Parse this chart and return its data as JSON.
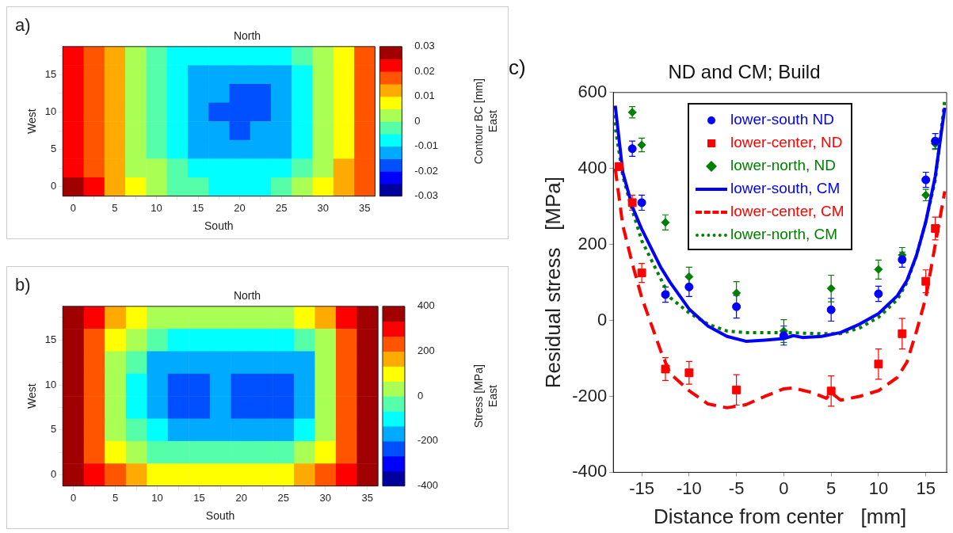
{
  "chart_data": [
    {
      "type": "heatmap",
      "title": "North",
      "xlabel": "South",
      "ylabel": "West",
      "clabel": "Contour BC [mm]",
      "y2label": "East",
      "annotations": [
        "a)"
      ],
      "categories": [
        "0",
        null,
        "5",
        null,
        "10",
        null,
        "15",
        null,
        "20",
        null,
        "25",
        null,
        "30",
        null,
        "35"
      ],
      "y_categories": [
        null,
        "15",
        null,
        "10",
        null,
        "5",
        null,
        "0"
      ],
      "clim": [
        -0.03,
        0.03
      ],
      "cticks": [
        -0.03,
        -0.02,
        -0.01,
        0,
        0.01,
        0.02,
        0.03
      ],
      "cells": [
        [
          0.022,
          0.017,
          0.011,
          0.004,
          -0.002,
          -0.006,
          -0.008,
          -0.009,
          -0.01,
          -0.009,
          -0.008,
          -0.004,
          0.003,
          0.009,
          0.016
        ],
        [
          0.022,
          0.017,
          0.011,
          0.004,
          -0.002,
          -0.007,
          -0.011,
          -0.012,
          -0.013,
          -0.012,
          -0.011,
          -0.006,
          0.002,
          0.009,
          0.016
        ],
        [
          0.022,
          0.017,
          0.01,
          0.003,
          -0.003,
          -0.008,
          -0.012,
          -0.014,
          -0.016,
          -0.016,
          -0.013,
          -0.007,
          0.001,
          0.008,
          0.015
        ],
        [
          0.022,
          0.017,
          0.01,
          0.002,
          -0.004,
          -0.009,
          -0.012,
          -0.017,
          -0.018,
          -0.017,
          -0.013,
          -0.008,
          0.001,
          0.008,
          0.015
        ],
        [
          0.022,
          0.017,
          0.01,
          0.002,
          -0.004,
          -0.009,
          -0.012,
          -0.014,
          -0.016,
          -0.014,
          -0.012,
          -0.008,
          0.001,
          0.008,
          0.015
        ],
        [
          0.022,
          0.017,
          0.011,
          0.003,
          -0.003,
          -0.007,
          -0.011,
          -0.012,
          -0.012,
          -0.012,
          -0.011,
          -0.006,
          0.002,
          0.009,
          0.016
        ],
        [
          0.024,
          0.018,
          0.012,
          0.005,
          0.001,
          -0.004,
          -0.007,
          -0.008,
          -0.009,
          -0.008,
          -0.006,
          -0.002,
          0.005,
          0.011,
          0.017
        ],
        [
          0.026,
          0.02,
          0.014,
          0.007,
          0.003,
          -0.002,
          -0.005,
          -0.006,
          -0.006,
          -0.006,
          -0.004,
          0.001,
          0.007,
          0.012,
          0.018
        ]
      ]
    },
    {
      "type": "heatmap",
      "title": "North",
      "xlabel": "South",
      "ylabel": "West",
      "clabel": "Stress [MPa]",
      "y2label": "East",
      "annotations": [
        "b)"
      ],
      "categories": [
        "0",
        null,
        "5",
        null,
        "10",
        null,
        "15",
        null,
        "20",
        null,
        "25",
        null,
        "30",
        null,
        "35"
      ],
      "y_categories": [
        null,
        "15",
        null,
        "10",
        null,
        "5",
        null,
        "0"
      ],
      "clim": [
        -400,
        400
      ],
      "cticks": [
        -400,
        -200,
        0,
        200,
        400
      ],
      "cells": [
        [
          380,
          300,
          150,
          80,
          40,
          20,
          10,
          10,
          10,
          20,
          40,
          80,
          150,
          300,
          380
        ],
        [
          380,
          250,
          100,
          20,
          -40,
          -90,
          -110,
          -110,
          -110,
          -110,
          -100,
          -50,
          60,
          250,
          380
        ],
        [
          380,
          230,
          60,
          -60,
          -150,
          -170,
          -190,
          -190,
          -170,
          -190,
          -180,
          -150,
          20,
          220,
          380
        ],
        [
          380,
          220,
          40,
          -80,
          -170,
          -230,
          -220,
          -160,
          -230,
          -240,
          -230,
          -160,
          10,
          210,
          380
        ],
        [
          380,
          220,
          40,
          -80,
          -160,
          -220,
          -210,
          -160,
          -220,
          -240,
          -230,
          -150,
          10,
          210,
          380
        ],
        [
          380,
          230,
          60,
          -40,
          -130,
          -150,
          -160,
          -160,
          -160,
          -150,
          -140,
          -110,
          30,
          220,
          380
        ],
        [
          380,
          260,
          110,
          40,
          -20,
          -50,
          -50,
          -50,
          -50,
          -50,
          -40,
          0,
          80,
          260,
          380
        ],
        [
          380,
          330,
          250,
          160,
          120,
          100,
          100,
          100,
          100,
          100,
          110,
          140,
          200,
          320,
          380
        ]
      ]
    },
    {
      "type": "scatter",
      "title": "ND and CM; Build",
      "xlabel": "Distance from center   [mm]",
      "ylabel": "Residual stress   [MPa]",
      "annotations": [
        "c)"
      ],
      "xlim": [
        -18,
        17.2
      ],
      "xticks": [
        -15,
        -10,
        -5,
        0,
        5,
        10,
        15
      ],
      "ylim": [
        -400,
        600
      ],
      "yticks": [
        -400,
        -200,
        0,
        200,
        400,
        600
      ],
      "grid": false,
      "legend": "top",
      "series": [
        {
          "name": "lower-south ND",
          "type": "scatter",
          "marker": "circle",
          "color": "#0000ff",
          "x": [
            -16,
            -15,
            -12.5,
            -10,
            -5,
            0,
            5,
            10,
            12.5,
            15,
            16
          ],
          "values": [
            452,
            310,
            68,
            88,
            36,
            -40,
            28,
            70,
            160,
            370,
            472
          ],
          "errors": [
            20,
            20,
            20,
            25,
            30,
            25,
            30,
            20,
            20,
            20,
            20
          ]
        },
        {
          "name": "lower-center, ND",
          "type": "scatter",
          "marker": "square",
          "color": "#ff0000",
          "x": [
            -17.4,
            -16,
            -15,
            -12.5,
            -10,
            -5,
            5,
            10,
            12.5,
            15,
            16
          ],
          "values": [
            405,
            310,
            125,
            -128,
            -138,
            -183,
            -186,
            -115,
            -35,
            103,
            242
          ],
          "errors": [
            10,
            20,
            25,
            30,
            30,
            40,
            40,
            40,
            40,
            30,
            30
          ]
        },
        {
          "name": "lower-north, ND",
          "type": "scatter",
          "marker": "diamond",
          "color": "#008000",
          "x": [
            -16,
            -15,
            -12.5,
            -10,
            -5,
            0,
            5,
            10,
            12.5,
            15,
            16
          ],
          "values": [
            548,
            462,
            258,
            115,
            72,
            -28,
            84,
            134,
            172,
            330,
            465
          ],
          "errors": [
            15,
            18,
            20,
            25,
            30,
            30,
            35,
            25,
            20,
            15,
            15
          ]
        },
        {
          "name": "lower-south, CM",
          "type": "line",
          "line_style": "solid",
          "color": "#0000ff",
          "x": [
            -17.8,
            -17,
            -16,
            -15,
            -13,
            -12,
            -10,
            -8,
            -6,
            -4,
            -2,
            0,
            1,
            2,
            4,
            6,
            8,
            10,
            12,
            13,
            14,
            15,
            16,
            17
          ],
          "values": [
            565,
            390,
            300,
            240,
            140,
            100,
            30,
            -15,
            -42,
            -55,
            -52,
            -48,
            -40,
            -45,
            -42,
            -32,
            -10,
            18,
            65,
            105,
            170,
            260,
            380,
            560
          ]
        },
        {
          "name": "lower-center, CM",
          "type": "line",
          "line_style": "dashed",
          "color": "#ff0000",
          "x": [
            -17.8,
            -17,
            -16,
            -15,
            -14,
            -13,
            -12,
            -10,
            -8,
            -6,
            -4,
            -2,
            0,
            1,
            3,
            4.5,
            5,
            5.5,
            6,
            8,
            10,
            12,
            13,
            14,
            15,
            16,
            17
          ],
          "values": [
            400,
            250,
            150,
            60,
            -10,
            -80,
            -140,
            -185,
            -220,
            -230,
            -222,
            -200,
            -180,
            -178,
            -190,
            -205,
            -190,
            -200,
            -210,
            -200,
            -185,
            -150,
            -110,
            -30,
            60,
            200,
            340
          ]
        },
        {
          "name": "lower-north, CM",
          "type": "line",
          "line_style": "dotted",
          "color": "#008000",
          "x": [
            -18,
            -17,
            -16,
            -15,
            -13,
            -12,
            -10,
            -8,
            -6,
            -4,
            0,
            4,
            6,
            8,
            10,
            12,
            13,
            14,
            15,
            16,
            17
          ],
          "values": [
            540,
            380,
            290,
            210,
            110,
            60,
            20,
            -10,
            -28,
            -32,
            -32,
            -35,
            -35,
            -20,
            8,
            55,
            100,
            170,
            260,
            370,
            580
          ]
        }
      ]
    }
  ]
}
